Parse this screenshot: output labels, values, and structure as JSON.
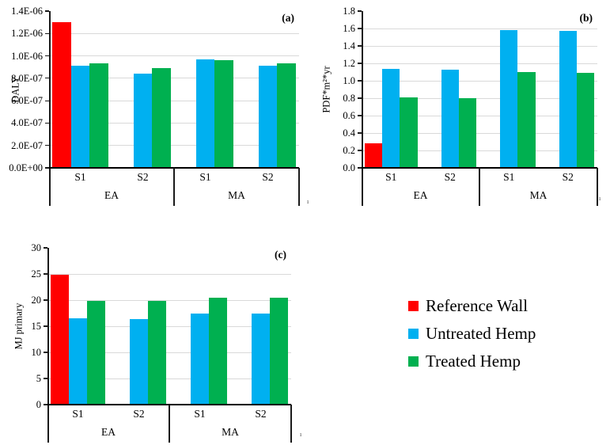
{
  "legend": {
    "items": [
      {
        "label": "Reference Wall",
        "color": "#FF0000"
      },
      {
        "label": "Untreated Hemp",
        "color": "#00B0F0"
      },
      {
        "label": "Treated Hemp",
        "color": "#00B050"
      }
    ]
  },
  "colors": {
    "axis": "#1a1a1a",
    "baseline": "#000000",
    "gridline": "#d9d9d9"
  },
  "stray_marks": [
    "ı",
    "ı",
    "ı"
  ],
  "chart_data": [
    {
      "id": "a",
      "type": "bar",
      "panel_label": "(a)",
      "ylabel": "DALY",
      "xlabel": "",
      "ylim": [
        0,
        1.4e-06
      ],
      "grid": true,
      "legend_position": "none",
      "categories": [
        "EA S1",
        "EA S2",
        "MA S1",
        "MA S2"
      ],
      "group_labels": [
        "S1",
        "S2",
        "S1",
        "S2"
      ],
      "super_group_labels": [
        "EA",
        "MA"
      ],
      "yticks": [
        {
          "label": "0.0E+00",
          "value": 0
        },
        {
          "label": "2.0E-07",
          "value": 2e-07
        },
        {
          "label": "4.0E-07",
          "value": 4e-07
        },
        {
          "label": "6.0E-07",
          "value": 6e-07
        },
        {
          "label": "8.0E-07",
          "value": 8e-07
        },
        {
          "label": "1.0E-06",
          "value": 1e-06
        },
        {
          "label": "1.2E-06",
          "value": 1.2e-06
        },
        {
          "label": "1.4E-06",
          "value": 1.4e-06
        }
      ],
      "series": [
        {
          "name": "Reference Wall",
          "color": "#FF0000",
          "values": [
            1.3e-06,
            null,
            null,
            null
          ]
        },
        {
          "name": "Untreated Hemp",
          "color": "#00B0F0",
          "values": [
            9.1e-07,
            8.4e-07,
            9.7e-07,
            9.1e-07
          ]
        },
        {
          "name": "Treated Hemp",
          "color": "#00B050",
          "values": [
            9.3e-07,
            8.9e-07,
            9.6e-07,
            9.3e-07
          ]
        }
      ]
    },
    {
      "id": "b",
      "type": "bar",
      "panel_label": "(b)",
      "ylabel": "PDF*m²*yr",
      "xlabel": "",
      "ylim": [
        0,
        1.8
      ],
      "grid": true,
      "legend_position": "none",
      "categories": [
        "EA S1",
        "EA S2",
        "MA S1",
        "MA S2"
      ],
      "group_labels": [
        "S1",
        "S2",
        "S1",
        "S2"
      ],
      "super_group_labels": [
        "EA",
        "MA"
      ],
      "yticks": [
        {
          "label": "0.0",
          "value": 0
        },
        {
          "label": "0.2",
          "value": 0.2
        },
        {
          "label": "0.4",
          "value": 0.4
        },
        {
          "label": "0.6",
          "value": 0.6
        },
        {
          "label": "0.8",
          "value": 0.8
        },
        {
          "label": "1.0",
          "value": 1.0
        },
        {
          "label": "1.2",
          "value": 1.2
        },
        {
          "label": "1.4",
          "value": 1.4
        },
        {
          "label": "1.6",
          "value": 1.6
        },
        {
          "label": "1.8",
          "value": 1.8
        }
      ],
      "series": [
        {
          "name": "Reference Wall",
          "color": "#FF0000",
          "values": [
            0.28,
            null,
            null,
            null
          ]
        },
        {
          "name": "Untreated Hemp",
          "color": "#00B0F0",
          "values": [
            1.14,
            1.13,
            1.58,
            1.57
          ]
        },
        {
          "name": "Treated Hemp",
          "color": "#00B050",
          "values": [
            0.81,
            0.8,
            1.1,
            1.09
          ]
        }
      ]
    },
    {
      "id": "c",
      "type": "bar",
      "panel_label": "(c)",
      "ylabel": "MJ primary",
      "xlabel": "",
      "ylim": [
        0,
        30
      ],
      "grid": true,
      "legend_position": "none",
      "categories": [
        "EA S1",
        "EA S2",
        "MA S1",
        "MA S2"
      ],
      "group_labels": [
        "S1",
        "S2",
        "S1",
        "S2"
      ],
      "super_group_labels": [
        "EA",
        "MA"
      ],
      "yticks": [
        {
          "label": "0",
          "value": 0
        },
        {
          "label": "5",
          "value": 5
        },
        {
          "label": "10",
          "value": 10
        },
        {
          "label": "15",
          "value": 15
        },
        {
          "label": "20",
          "value": 20
        },
        {
          "label": "25",
          "value": 25
        },
        {
          "label": "30",
          "value": 30
        }
      ],
      "series": [
        {
          "name": "Reference Wall",
          "color": "#FF0000",
          "values": [
            24.9,
            null,
            null,
            null
          ]
        },
        {
          "name": "Untreated Hemp",
          "color": "#00B0F0",
          "values": [
            16.5,
            16.3,
            17.5,
            17.4
          ]
        },
        {
          "name": "Treated Hemp",
          "color": "#00B050",
          "values": [
            19.9,
            19.8,
            20.5,
            20.4
          ]
        }
      ]
    }
  ]
}
